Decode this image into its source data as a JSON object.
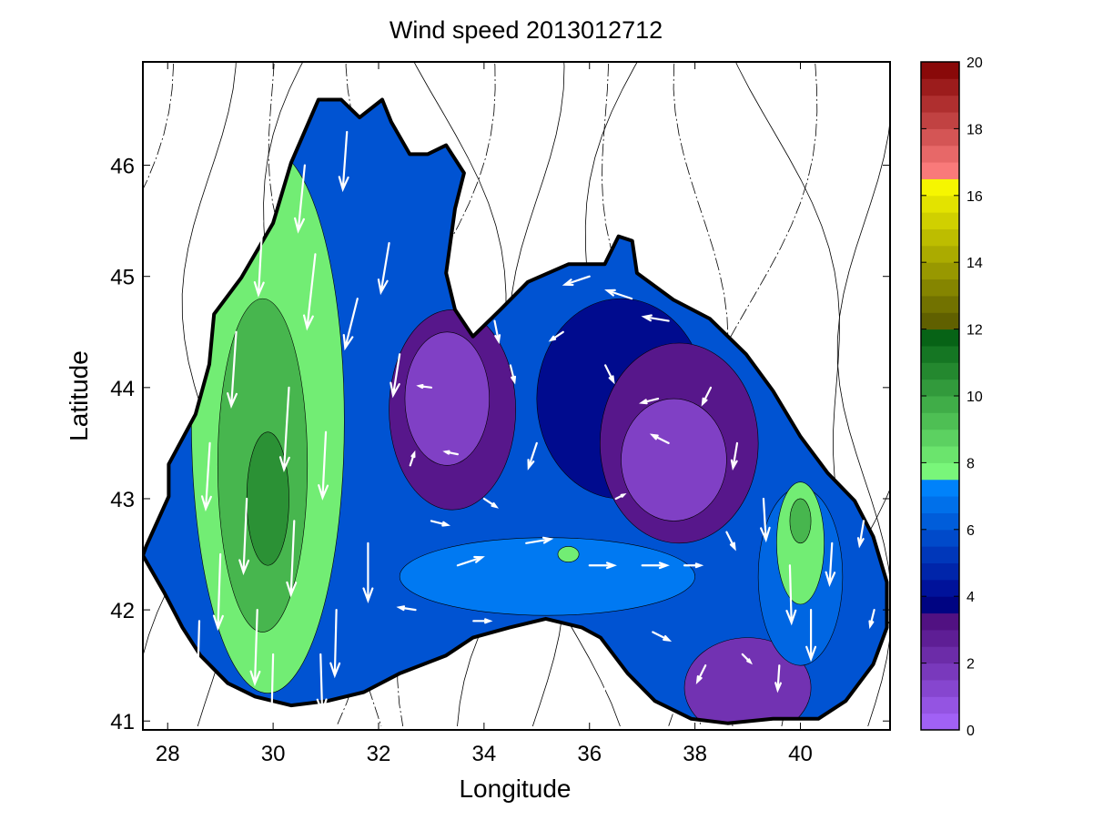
{
  "chart_data": {
    "type": "heatmap",
    "subtype": "filled-contour map with wind vectors",
    "title": "Wind speed 2013012712",
    "xlabel": "Longitude",
    "ylabel": "Latitude",
    "xlim": [
      27.53,
      41.7
    ],
    "ylim": [
      40.92,
      46.93
    ],
    "xticks": [
      "28",
      "30",
      "32",
      "34",
      "36",
      "38",
      "40"
    ],
    "xtick_values": [
      28,
      30,
      32,
      34,
      36,
      38,
      40
    ],
    "yticks": [
      "41",
      "42",
      "43",
      "44",
      "45",
      "46"
    ],
    "ytick_values": [
      41,
      42,
      43,
      44,
      45,
      46
    ],
    "colorbar": {
      "range": [
        0,
        20
      ],
      "ticks": [
        "0",
        "2",
        "4",
        "6",
        "8",
        "10",
        "12",
        "14",
        "16",
        "18",
        "20"
      ],
      "tick_values": [
        0,
        2,
        4,
        6,
        8,
        10,
        12,
        14,
        16,
        18,
        20
      ],
      "stops": [
        {
          "v": 0,
          "c": "#a868ff"
        },
        {
          "v": 3.5,
          "c": "#4a0a78"
        },
        {
          "v": 3.6,
          "c": "#00007a"
        },
        {
          "v": 4.2,
          "c": "#001098"
        },
        {
          "v": 7.4,
          "c": "#0088ff"
        },
        {
          "v": 7.5,
          "c": "#80ff80"
        },
        {
          "v": 12,
          "c": "#005a10"
        },
        {
          "v": 12.1,
          "c": "#5a5a00"
        },
        {
          "v": 16.5,
          "c": "#ffff00"
        },
        {
          "v": 16.6,
          "c": "#ff8080"
        },
        {
          "v": 20,
          "c": "#800000"
        }
      ]
    },
    "base_speed": 6,
    "speed_regions": [
      {
        "name": "west-high",
        "lon": 29.9,
        "lat": 43.7,
        "rlon": 1.45,
        "rlat": 2.45,
        "speed": 8
      },
      {
        "name": "west-core",
        "lon": 29.8,
        "lat": 43.3,
        "rlon": 0.85,
        "rlat": 1.5,
        "speed": 9.5
      },
      {
        "name": "west-peak",
        "lon": 29.9,
        "lat": 43.0,
        "rlon": 0.4,
        "rlat": 0.6,
        "speed": 10.5
      },
      {
        "name": "central-north-low",
        "lon": 36.6,
        "lat": 43.9,
        "rlon": 1.6,
        "rlat": 0.9,
        "speed": 4
      },
      {
        "name": "west-central-low-ring",
        "lon": 33.4,
        "lat": 43.8,
        "rlon": 1.2,
        "rlat": 0.9,
        "speed": 3
      },
      {
        "name": "west-central-low",
        "lon": 33.3,
        "lat": 43.9,
        "rlon": 0.8,
        "rlat": 0.6,
        "speed": 1.5
      },
      {
        "name": "east-central-low-ring",
        "lon": 37.7,
        "lat": 43.5,
        "rlon": 1.5,
        "rlat": 0.9,
        "speed": 3
      },
      {
        "name": "east-central-low",
        "lon": 37.6,
        "lat": 43.35,
        "rlon": 1.0,
        "rlat": 0.55,
        "speed": 1.5
      },
      {
        "name": "south-low",
        "lon": 39.0,
        "lat": 41.3,
        "rlon": 1.2,
        "rlat": 0.45,
        "speed": 2
      },
      {
        "name": "south-band",
        "lon": 35.2,
        "lat": 42.3,
        "rlon": 2.8,
        "rlat": 0.35,
        "speed": 7
      },
      {
        "name": "east-ring",
        "lon": 40.0,
        "lat": 42.3,
        "rlon": 0.8,
        "rlat": 0.8,
        "speed": 6.5
      },
      {
        "name": "east-high",
        "lon": 40.0,
        "lat": 42.6,
        "rlon": 0.45,
        "rlat": 0.55,
        "speed": 8
      },
      {
        "name": "east-peak",
        "lon": 40.0,
        "lat": 42.8,
        "rlon": 0.2,
        "rlat": 0.2,
        "speed": 9.5
      },
      {
        "name": "mid-spot",
        "lon": 35.6,
        "lat": 42.5,
        "rlon": 0.2,
        "rlat": 0.07,
        "speed": 8
      }
    ],
    "coastline": [
      [
        27.59,
        42.57
      ],
      [
        28.02,
        43.02
      ],
      [
        28.02,
        43.31
      ],
      [
        28.53,
        43.76
      ],
      [
        28.79,
        44.21
      ],
      [
        28.88,
        44.66
      ],
      [
        29.4,
        44.99
      ],
      [
        30.0,
        45.48
      ],
      [
        30.34,
        46.02
      ],
      [
        30.86,
        46.59
      ],
      [
        31.29,
        46.59
      ],
      [
        31.64,
        46.43
      ],
      [
        32.07,
        46.59
      ],
      [
        32.24,
        46.39
      ],
      [
        32.59,
        46.1
      ],
      [
        32.93,
        46.1
      ],
      [
        33.28,
        46.18
      ],
      [
        33.62,
        45.93
      ],
      [
        33.45,
        45.61
      ],
      [
        33.28,
        45.03
      ],
      [
        33.45,
        44.7
      ],
      [
        33.79,
        44.46
      ],
      [
        34.31,
        44.7
      ],
      [
        34.83,
        44.95
      ],
      [
        35.6,
        45.11
      ],
      [
        36.29,
        45.11
      ],
      [
        36.55,
        45.36
      ],
      [
        36.81,
        45.32
      ],
      [
        36.9,
        45.03
      ],
      [
        37.59,
        44.79
      ],
      [
        38.28,
        44.62
      ],
      [
        38.97,
        44.3
      ],
      [
        39.48,
        43.97
      ],
      [
        40.0,
        43.56
      ],
      [
        40.52,
        43.23
      ],
      [
        41.03,
        42.98
      ],
      [
        41.38,
        42.66
      ],
      [
        41.64,
        42.25
      ],
      [
        41.64,
        41.84
      ],
      [
        41.38,
        41.51
      ],
      [
        40.86,
        41.18
      ],
      [
        40.34,
        41.02
      ],
      [
        39.48,
        41.02
      ],
      [
        38.62,
        40.98
      ],
      [
        37.93,
        41.02
      ],
      [
        37.24,
        41.18
      ],
      [
        36.72,
        41.43
      ],
      [
        36.21,
        41.75
      ],
      [
        35.86,
        41.84
      ],
      [
        35.17,
        41.92
      ],
      [
        34.48,
        41.84
      ],
      [
        33.79,
        41.75
      ],
      [
        33.28,
        41.59
      ],
      [
        32.41,
        41.43
      ],
      [
        31.72,
        41.26
      ],
      [
        31.03,
        41.18
      ],
      [
        30.34,
        41.14
      ],
      [
        29.66,
        41.22
      ],
      [
        29.14,
        41.34
      ],
      [
        28.62,
        41.59
      ],
      [
        28.28,
        41.84
      ],
      [
        27.93,
        42.16
      ],
      [
        27.53,
        42.49
      ]
    ],
    "wind_vectors_lon_lat_u_v": [
      [
        28.8,
        43.5,
        -0.5,
        -8
      ],
      [
        29.3,
        44.5,
        -0.6,
        -9
      ],
      [
        29.8,
        45.5,
        -0.5,
        -9
      ],
      [
        30.3,
        44.0,
        -0.6,
        -10
      ],
      [
        30.8,
        45.2,
        -1,
        -9
      ],
      [
        29.0,
        42.5,
        -0.3,
        -9
      ],
      [
        29.7,
        42.0,
        -0.3,
        -9
      ],
      [
        30.4,
        42.8,
        -0.4,
        -9
      ],
      [
        31.0,
        43.6,
        -0.4,
        -8
      ],
      [
        30.6,
        46.0,
        -0.8,
        -8
      ],
      [
        31.4,
        46.3,
        -0.5,
        -7
      ],
      [
        31.6,
        44.8,
        -1.5,
        -6
      ],
      [
        31.2,
        42.0,
        -0.2,
        -8
      ],
      [
        30.0,
        41.6,
        -0.2,
        -8
      ],
      [
        28.6,
        41.9,
        -0.2,
        -7
      ],
      [
        31.8,
        42.6,
        0,
        -7
      ],
      [
        29.5,
        43.0,
        -0.4,
        -9
      ],
      [
        30.9,
        41.6,
        0.2,
        -7
      ],
      [
        32.4,
        44.3,
        -0.8,
        -5
      ],
      [
        32.2,
        45.3,
        -1,
        -6
      ],
      [
        33.0,
        44.0,
        -1.5,
        0.2
      ],
      [
        33.5,
        43.4,
        -1.5,
        0.3
      ],
      [
        32.6,
        43.3,
        0.5,
        1.5
      ],
      [
        34.0,
        43.0,
        1.5,
        -1
      ],
      [
        33.5,
        42.4,
        3,
        1
      ],
      [
        34.8,
        42.6,
        3,
        0.5
      ],
      [
        32.7,
        42.0,
        -2,
        0.3
      ],
      [
        33.8,
        41.9,
        2,
        0
      ],
      [
        34.5,
        44.2,
        0.5,
        -2
      ],
      [
        35.0,
        43.5,
        -1,
        -3
      ],
      [
        35.5,
        44.5,
        -1.5,
        -1
      ],
      [
        36.0,
        42.4,
        3,
        0
      ],
      [
        35.8,
        41.8,
        2,
        -1
      ],
      [
        37.0,
        42.4,
        3,
        0
      ],
      [
        37.2,
        41.8,
        2,
        -1
      ],
      [
        37.8,
        42.4,
        2,
        0
      ],
      [
        38.2,
        41.5,
        -1,
        -2
      ],
      [
        37.5,
        43.5,
        -2,
        1
      ],
      [
        36.5,
        43.0,
        1,
        0.5
      ],
      [
        36.3,
        44.2,
        1,
        -2
      ],
      [
        37.5,
        44.6,
        -3,
        0.5
      ],
      [
        36.8,
        44.8,
        -3,
        1
      ],
      [
        36.0,
        45.0,
        -3,
        -1
      ],
      [
        37.3,
        43.9,
        -2,
        -0.5
      ],
      [
        38.3,
        44.0,
        -1,
        -2
      ],
      [
        38.8,
        43.5,
        -0.5,
        -3
      ],
      [
        38.6,
        42.7,
        1,
        -2
      ],
      [
        39.3,
        43.0,
        0.3,
        -5
      ],
      [
        39.8,
        42.4,
        0.2,
        -7
      ],
      [
        40.2,
        42.0,
        0,
        -6
      ],
      [
        40.6,
        42.6,
        -0.3,
        -5
      ],
      [
        41.2,
        42.8,
        -0.5,
        -3
      ],
      [
        39.6,
        41.5,
        -0.2,
        -3
      ],
      [
        41.4,
        42.0,
        -0.5,
        -2
      ],
      [
        38.9,
        41.6,
        1,
        -1
      ],
      [
        36.3,
        41.3,
        -1,
        -2
      ],
      [
        34.2,
        44.6,
        0.5,
        -2.5
      ],
      [
        33.0,
        42.8,
        2,
        -0.5
      ]
    ]
  }
}
